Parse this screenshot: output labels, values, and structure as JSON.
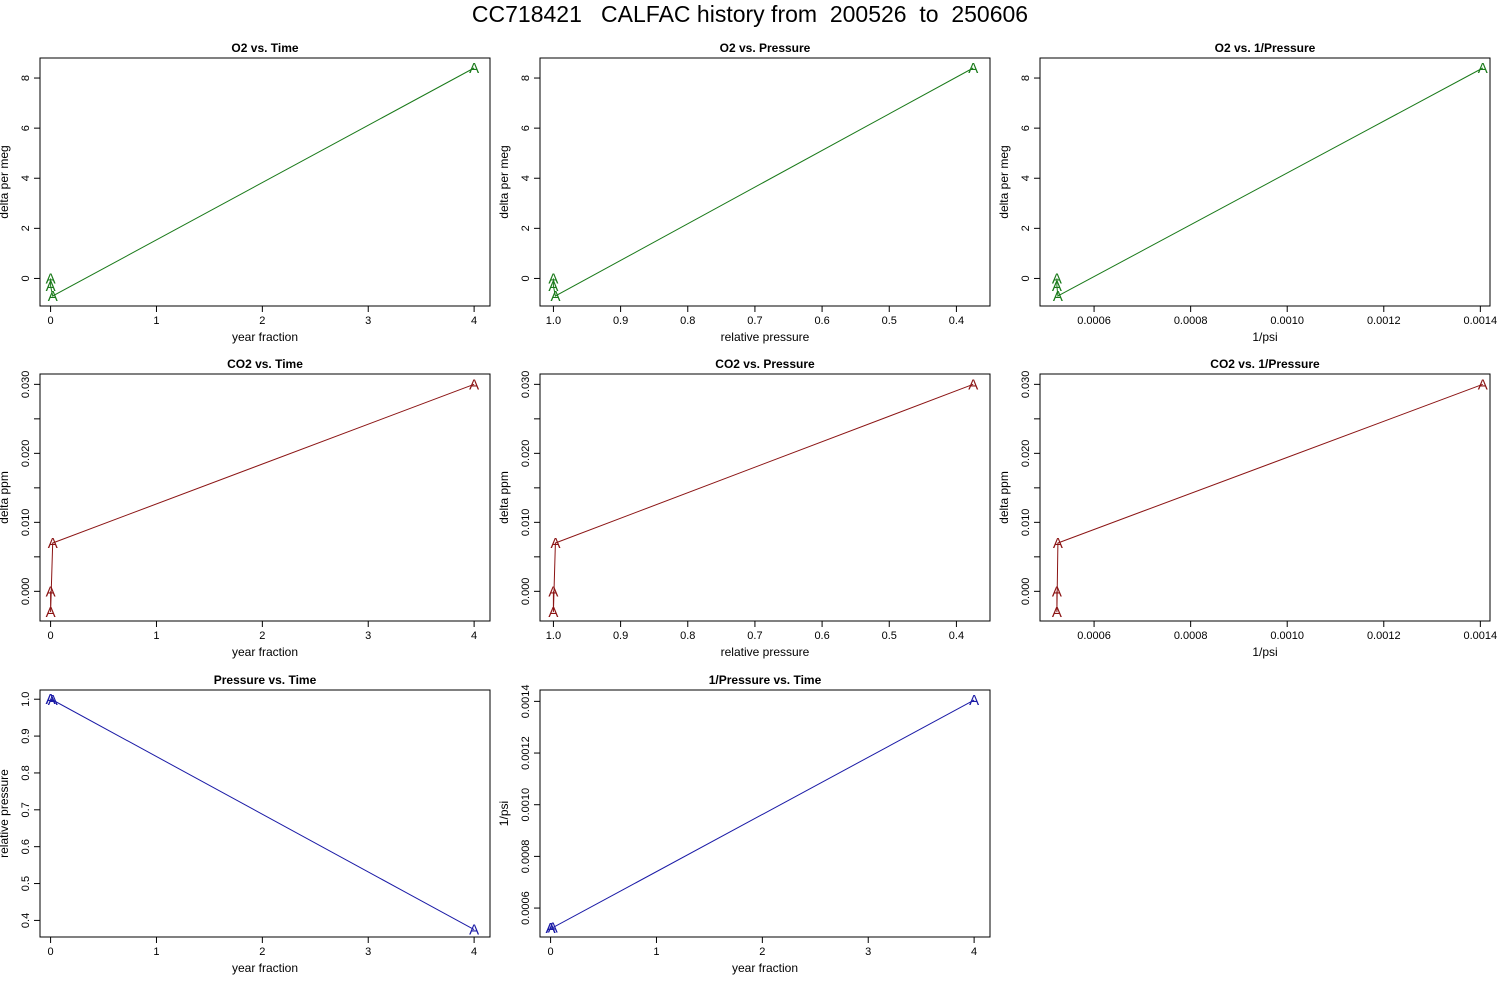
{
  "page": {
    "title": "CC718421   CALFAC history from  200526  to  250606"
  },
  "colors": {
    "o2": "#1a7a1a",
    "co2": "#8b1414",
    "pressure": "#1a1aa6"
  },
  "chart_data": [
    {
      "type": "line",
      "title": "O2 vs. Time",
      "xlabel": "year fraction",
      "ylabel": "delta per meg",
      "xlim": [
        -0.1,
        4.15
      ],
      "ylim": [
        -1.1,
        8.8
      ],
      "xticks": [
        {
          "v": 0,
          "t": "0"
        },
        {
          "v": 1,
          "t": "1"
        },
        {
          "v": 2,
          "t": "2"
        },
        {
          "v": 3,
          "t": "3"
        },
        {
          "v": 4,
          "t": "4"
        }
      ],
      "yticks": [
        {
          "v": 0,
          "t": "0"
        },
        {
          "v": 2,
          "t": "2"
        },
        {
          "v": 4,
          "t": "4"
        },
        {
          "v": 6,
          "t": "6"
        },
        {
          "v": 8,
          "t": "8"
        }
      ],
      "color": "o2",
      "marker": "A",
      "points": [
        {
          "x": 0.0,
          "y": 0.0
        },
        {
          "x": 0.0,
          "y": -0.3
        },
        {
          "x": 0.02,
          "y": -0.7
        },
        {
          "x": 4.0,
          "y": 8.4
        }
      ]
    },
    {
      "type": "line",
      "title": "O2 vs. Pressure",
      "xlabel": "relative pressure",
      "ylabel": "delta per meg",
      "xlim": [
        1.02,
        0.35
      ],
      "ylim": [
        -1.1,
        8.8
      ],
      "xticks": [
        {
          "v": 1.0,
          "t": "1.0"
        },
        {
          "v": 0.9,
          "t": "0.9"
        },
        {
          "v": 0.8,
          "t": "0.8"
        },
        {
          "v": 0.7,
          "t": "0.7"
        },
        {
          "v": 0.6,
          "t": "0.6"
        },
        {
          "v": 0.5,
          "t": "0.5"
        },
        {
          "v": 0.4,
          "t": "0.4"
        }
      ],
      "yticks": [
        {
          "v": 0,
          "t": "0"
        },
        {
          "v": 2,
          "t": "2"
        },
        {
          "v": 4,
          "t": "4"
        },
        {
          "v": 6,
          "t": "6"
        },
        {
          "v": 8,
          "t": "8"
        }
      ],
      "color": "o2",
      "marker": "A",
      "points": [
        {
          "x": 1.0,
          "y": 0.0
        },
        {
          "x": 1.0,
          "y": -0.3
        },
        {
          "x": 0.997,
          "y": -0.7
        },
        {
          "x": 0.375,
          "y": 8.4
        }
      ]
    },
    {
      "type": "line",
      "title": "O2 vs. 1/Pressure",
      "xlabel": "1/psi",
      "ylabel": "delta per meg",
      "xlim": [
        0.000488,
        0.00142
      ],
      "ylim": [
        -1.1,
        8.8
      ],
      "xticks": [
        {
          "v": 0.0006,
          "t": "0.0006"
        },
        {
          "v": 0.0008,
          "t": "0.0008"
        },
        {
          "v": 0.001,
          "t": "0.0010"
        },
        {
          "v": 0.0012,
          "t": "0.0012"
        },
        {
          "v": 0.0014,
          "t": "0.0014"
        }
      ],
      "yticks": [
        {
          "v": 0,
          "t": "0"
        },
        {
          "v": 2,
          "t": "2"
        },
        {
          "v": 4,
          "t": "4"
        },
        {
          "v": 6,
          "t": "6"
        },
        {
          "v": 8,
          "t": "8"
        }
      ],
      "color": "o2",
      "marker": "A",
      "points": [
        {
          "x": 0.000523,
          "y": 0.0
        },
        {
          "x": 0.000523,
          "y": -0.3
        },
        {
          "x": 0.000525,
          "y": -0.7
        },
        {
          "x": 0.001405,
          "y": 8.4
        }
      ]
    },
    {
      "type": "line",
      "title": "CO2 vs. Time",
      "xlabel": "year fraction",
      "ylabel": "delta ppm",
      "xlim": [
        -0.1,
        4.15
      ],
      "ylim": [
        -0.0043,
        0.0315
      ],
      "xticks": [
        {
          "v": 0,
          "t": "0"
        },
        {
          "v": 1,
          "t": "1"
        },
        {
          "v": 2,
          "t": "2"
        },
        {
          "v": 3,
          "t": "3"
        },
        {
          "v": 4,
          "t": "4"
        }
      ],
      "yticks": [
        {
          "v": 0,
          "t": "0.000"
        },
        {
          "v": 0.01,
          "t": "0.010"
        },
        {
          "v": 0.02,
          "t": "0.020"
        },
        {
          "v": 0.03,
          "t": "0.030"
        }
      ],
      "yminor": [
        0.005,
        0.015,
        0.025
      ],
      "color": "co2",
      "marker": "A",
      "points": [
        {
          "x": 0.0,
          "y": 0.0
        },
        {
          "x": 0.0,
          "y": -0.003
        },
        {
          "x": 0.02,
          "y": 0.007
        },
        {
          "x": 4.0,
          "y": 0.03
        }
      ]
    },
    {
      "type": "line",
      "title": "CO2 vs. Pressure",
      "xlabel": "relative pressure",
      "ylabel": "delta ppm",
      "xlim": [
        1.02,
        0.35
      ],
      "ylim": [
        -0.0043,
        0.0315
      ],
      "xticks": [
        {
          "v": 1.0,
          "t": "1.0"
        },
        {
          "v": 0.9,
          "t": "0.9"
        },
        {
          "v": 0.8,
          "t": "0.8"
        },
        {
          "v": 0.7,
          "t": "0.7"
        },
        {
          "v": 0.6,
          "t": "0.6"
        },
        {
          "v": 0.5,
          "t": "0.5"
        },
        {
          "v": 0.4,
          "t": "0.4"
        }
      ],
      "yticks": [
        {
          "v": 0,
          "t": "0.000"
        },
        {
          "v": 0.01,
          "t": "0.010"
        },
        {
          "v": 0.02,
          "t": "0.020"
        },
        {
          "v": 0.03,
          "t": "0.030"
        }
      ],
      "yminor": [
        0.005,
        0.015,
        0.025
      ],
      "color": "co2",
      "marker": "A",
      "points": [
        {
          "x": 1.0,
          "y": 0.0
        },
        {
          "x": 1.0,
          "y": -0.003
        },
        {
          "x": 0.997,
          "y": 0.007
        },
        {
          "x": 0.375,
          "y": 0.03
        }
      ]
    },
    {
      "type": "line",
      "title": "CO2 vs. 1/Pressure",
      "xlabel": "1/psi",
      "ylabel": "delta ppm",
      "xlim": [
        0.000488,
        0.00142
      ],
      "ylim": [
        -0.0043,
        0.0315
      ],
      "xticks": [
        {
          "v": 0.0006,
          "t": "0.0006"
        },
        {
          "v": 0.0008,
          "t": "0.0008"
        },
        {
          "v": 0.001,
          "t": "0.0010"
        },
        {
          "v": 0.0012,
          "t": "0.0012"
        },
        {
          "v": 0.0014,
          "t": "0.0014"
        }
      ],
      "yticks": [
        {
          "v": 0,
          "t": "0.000"
        },
        {
          "v": 0.01,
          "t": "0.010"
        },
        {
          "v": 0.02,
          "t": "0.020"
        },
        {
          "v": 0.03,
          "t": "0.030"
        }
      ],
      "yminor": [
        0.005,
        0.015,
        0.025
      ],
      "color": "co2",
      "marker": "A",
      "points": [
        {
          "x": 0.000523,
          "y": 0.0
        },
        {
          "x": 0.000523,
          "y": -0.003
        },
        {
          "x": 0.000525,
          "y": 0.007
        },
        {
          "x": 0.001405,
          "y": 0.03
        }
      ]
    },
    {
      "type": "line",
      "title": "Pressure vs. Time",
      "xlabel": "year fraction",
      "ylabel": "relative pressure",
      "xlim": [
        -0.1,
        4.15
      ],
      "ylim": [
        0.355,
        1.025
      ],
      "xticks": [
        {
          "v": 0,
          "t": "0"
        },
        {
          "v": 1,
          "t": "1"
        },
        {
          "v": 2,
          "t": "2"
        },
        {
          "v": 3,
          "t": "3"
        },
        {
          "v": 4,
          "t": "4"
        }
      ],
      "yticks": [
        {
          "v": 0.4,
          "t": "0.4"
        },
        {
          "v": 0.5,
          "t": "0.5"
        },
        {
          "v": 0.6,
          "t": "0.6"
        },
        {
          "v": 0.7,
          "t": "0.7"
        },
        {
          "v": 0.8,
          "t": "0.8"
        },
        {
          "v": 0.9,
          "t": "0.9"
        },
        {
          "v": 1.0,
          "t": "1.0"
        }
      ],
      "color": "pressure",
      "marker": "A",
      "points": [
        {
          "x": 0.0,
          "y": 1.0
        },
        {
          "x": 0.0,
          "y": 1.0
        },
        {
          "x": 0.02,
          "y": 0.998
        },
        {
          "x": 4.0,
          "y": 0.375
        }
      ]
    },
    {
      "type": "line",
      "title": "1/Pressure vs. Time",
      "xlabel": "year fraction",
      "ylabel": "1/psi",
      "xlim": [
        -0.1,
        4.15
      ],
      "ylim": [
        0.000488,
        0.001444
      ],
      "xticks": [
        {
          "v": 0,
          "t": "0"
        },
        {
          "v": 1,
          "t": "1"
        },
        {
          "v": 2,
          "t": "2"
        },
        {
          "v": 3,
          "t": "3"
        },
        {
          "v": 4,
          "t": "4"
        }
      ],
      "yticks": [
        {
          "v": 0.0006,
          "t": "0.0006"
        },
        {
          "v": 0.0008,
          "t": "0.0008"
        },
        {
          "v": 0.001,
          "t": "0.0010"
        },
        {
          "v": 0.0012,
          "t": "0.0012"
        },
        {
          "v": 0.0014,
          "t": "0.0014"
        }
      ],
      "color": "pressure",
      "marker": "A",
      "points": [
        {
          "x": 0.0,
          "y": 0.000523
        },
        {
          "x": 0.0,
          "y": 0.000523
        },
        {
          "x": 0.02,
          "y": 0.000524
        },
        {
          "x": 4.0,
          "y": 0.001405
        }
      ]
    }
  ]
}
